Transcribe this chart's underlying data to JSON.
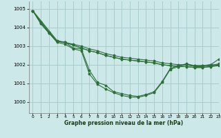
{
  "title": "Graphe pression niveau de la mer (hPa)",
  "background_color": "#cce8e8",
  "grid_color": "#aacccc",
  "line_color": "#2d6e3a",
  "xlim": [
    -0.5,
    23
  ],
  "ylim": [
    999.4,
    1005.4
  ],
  "yticks": [
    1000,
    1001,
    1002,
    1003,
    1004,
    1005
  ],
  "xticks": [
    0,
    1,
    2,
    3,
    4,
    5,
    6,
    7,
    8,
    9,
    10,
    11,
    12,
    13,
    14,
    15,
    16,
    17,
    18,
    19,
    20,
    21,
    22,
    23
  ],
  "series": [
    {
      "x": [
        0,
        1,
        2,
        3,
        4,
        5,
        6,
        7,
        8,
        9,
        10,
        11,
        12,
        13,
        14,
        15,
        16,
        17,
        18,
        19,
        20,
        21,
        22,
        23
      ],
      "y": [
        1004.9,
        1004.3,
        1003.75,
        1003.25,
        1003.2,
        1003.1,
        1003.0,
        1002.85,
        1002.75,
        1002.6,
        1002.5,
        1002.4,
        1002.35,
        1002.3,
        1002.25,
        1002.2,
        1002.1,
        1002.05,
        1002.0,
        1002.0,
        1001.95,
        1001.95,
        1002.0,
        1002.3
      ]
    },
    {
      "x": [
        0,
        1,
        2,
        3,
        4,
        5,
        6,
        7,
        8,
        9,
        10,
        11,
        12,
        13,
        14,
        15,
        16,
        17,
        18,
        19,
        20,
        21,
        22,
        23
      ],
      "y": [
        1004.9,
        1004.3,
        1003.75,
        1003.25,
        1003.2,
        1003.05,
        1002.9,
        1002.75,
        1002.65,
        1002.5,
        1002.4,
        1002.3,
        1002.25,
        1002.2,
        1002.15,
        1002.1,
        1002.0,
        1001.95,
        1001.9,
        1001.9,
        1001.85,
        1001.85,
        1001.9,
        1002.0
      ]
    },
    {
      "x": [
        0,
        3,
        4,
        5,
        6,
        7,
        8,
        9,
        10,
        11,
        12,
        13,
        14,
        15,
        16,
        17,
        18,
        19,
        20,
        21,
        22,
        23
      ],
      "y": [
        1004.9,
        1003.3,
        1003.2,
        1003.05,
        1002.9,
        1002.75,
        1002.65,
        1002.5,
        1002.4,
        1002.3,
        1002.25,
        1002.2,
        1002.15,
        1002.1,
        1002.0,
        1001.95,
        1001.9,
        1001.9,
        1001.85,
        1001.85,
        1001.9,
        1001.95
      ]
    },
    {
      "x": [
        0,
        1,
        2,
        3,
        4,
        5,
        6,
        7,
        8,
        9,
        10,
        11,
        12,
        13,
        14,
        15,
        16,
        17,
        18,
        19,
        20,
        21,
        22,
        23
      ],
      "y": [
        1004.9,
        1004.2,
        1003.7,
        1003.25,
        1003.2,
        1002.9,
        1002.85,
        1001.7,
        1001.05,
        1000.9,
        1000.55,
        1000.45,
        1000.35,
        1000.3,
        1000.4,
        1000.55,
        1001.1,
        1001.8,
        1001.95,
        1002.05,
        1001.95,
        1001.95,
        1002.0,
        1002.0
      ]
    },
    {
      "x": [
        0,
        1,
        2,
        3,
        4,
        5,
        6,
        7,
        8,
        9,
        10,
        11,
        12,
        13,
        14,
        15,
        16,
        17,
        18,
        19,
        20,
        21,
        22,
        23
      ],
      "y": [
        1004.9,
        1004.2,
        1003.7,
        1003.2,
        1003.1,
        1002.85,
        1002.75,
        1001.5,
        1000.95,
        1000.7,
        1000.5,
        1000.35,
        1000.27,
        1000.25,
        1000.35,
        1000.5,
        1001.05,
        1001.75,
        1001.9,
        1002.0,
        1001.9,
        1001.9,
        1001.95,
        1002.05
      ]
    }
  ]
}
